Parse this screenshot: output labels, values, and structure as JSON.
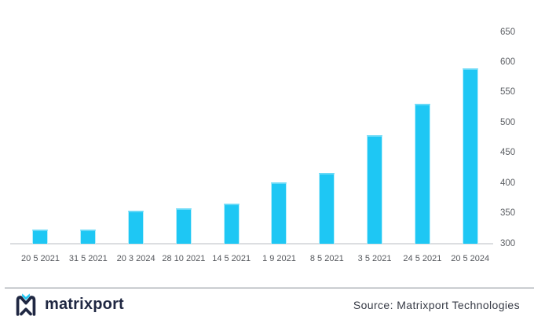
{
  "chart_data": {
    "type": "bar",
    "categories": [
      "20 5 2021",
      "31 5 2021",
      "20 3 2024",
      "28 10 2021",
      "14 5 2021",
      "1 9 2021",
      "8 5 2021",
      "3 5 2021",
      "24 5 2021",
      "20 5 2024"
    ],
    "values": [
      323,
      324,
      355,
      358,
      366,
      401,
      417,
      480,
      532,
      590
    ],
    "title": "",
    "xlabel": "",
    "ylabel": "",
    "ylim": [
      300,
      660
    ],
    "yticks": [
      300,
      350,
      400,
      450,
      500,
      550,
      600,
      650
    ],
    "y_axis_side": "right",
    "grid": false,
    "legend": false,
    "bar_color": "#1ec7f4",
    "bar_edge_color": "#8fe4fa",
    "axis_line_color": "#dcdee1",
    "tick_label_color": "#5b5e63"
  },
  "footer": {
    "brand": "matrixport",
    "source": "Source: Matrixport Technologies",
    "brand_color": "#1f2742",
    "accent_color": "#22c7f3"
  }
}
